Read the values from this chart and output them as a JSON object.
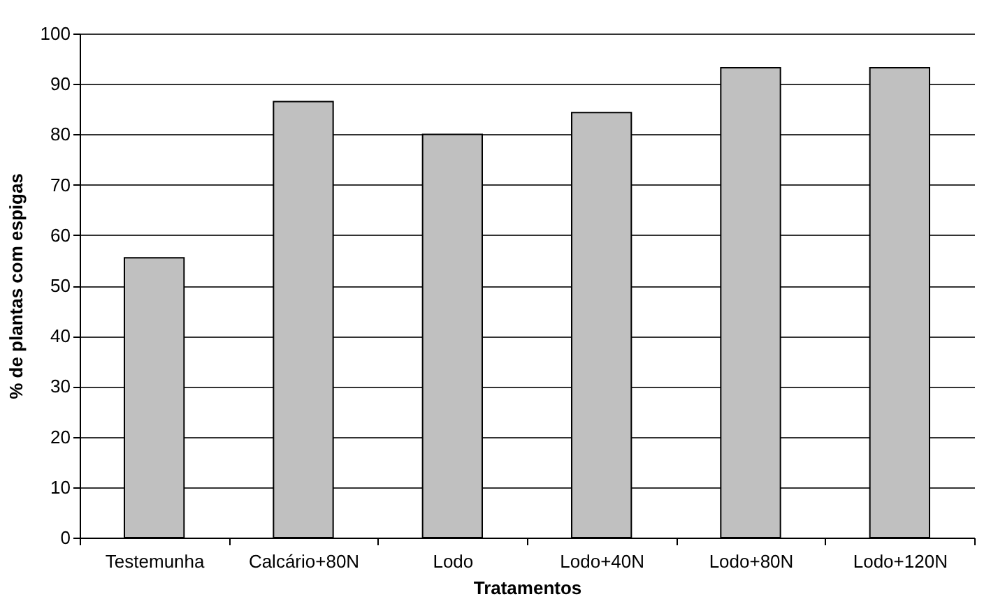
{
  "chart_data": {
    "type": "bar",
    "xlabel": "Tratamentos",
    "ylabel": "% de plantas com espigas",
    "categories": [
      "Testemunha",
      "Calcário+80N",
      "Lodo",
      "Lodo+40N",
      "Lodo+80N",
      "Lodo+120N"
    ],
    "values": [
      55.5,
      86.5,
      80,
      84.3,
      93.2,
      93.2
    ],
    "color": "#c0c0c0",
    "ylim": [
      0,
      100
    ],
    "yticks": [
      0,
      10,
      20,
      30,
      40,
      50,
      60,
      70,
      80,
      90,
      100
    ],
    "grid": "y"
  }
}
